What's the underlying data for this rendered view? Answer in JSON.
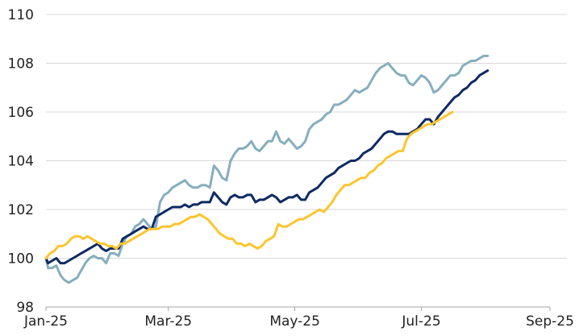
{
  "chart_data": {
    "type": "line",
    "title": "",
    "xlabel": "",
    "ylabel": "",
    "ylim": [
      98,
      110
    ],
    "yticks": [
      98,
      100,
      102,
      104,
      106,
      108,
      110
    ],
    "xticks": [
      "Jan-25",
      "Mar-25",
      "May-25",
      "Jul-25",
      "Sep-25"
    ],
    "xtick_days": [
      0,
      59,
      120,
      181,
      243
    ],
    "grid": "horizontal",
    "legend": "none",
    "x_unit": "days since Jan-25",
    "series": [
      {
        "name": "light-blue series",
        "color": "#86AEBE",
        "points": [
          [
            0,
            100.0
          ],
          [
            1,
            99.6
          ],
          [
            3,
            99.6
          ],
          [
            5,
            99.7
          ],
          [
            7,
            99.3
          ],
          [
            9,
            99.1
          ],
          [
            11,
            99.0
          ],
          [
            13,
            99.1
          ],
          [
            15,
            99.2
          ],
          [
            17,
            99.5
          ],
          [
            19,
            99.8
          ],
          [
            21,
            100.0
          ],
          [
            23,
            100.1
          ],
          [
            25,
            100.0
          ],
          [
            27,
            100.0
          ],
          [
            29,
            99.8
          ],
          [
            31,
            100.2
          ],
          [
            33,
            100.2
          ],
          [
            35,
            100.1
          ],
          [
            37,
            100.6
          ],
          [
            39,
            100.9
          ],
          [
            41,
            101.0
          ],
          [
            43,
            101.3
          ],
          [
            45,
            101.4
          ],
          [
            47,
            101.6
          ],
          [
            49,
            101.4
          ],
          [
            51,
            101.2
          ],
          [
            53,
            101.3
          ],
          [
            55,
            102.3
          ],
          [
            57,
            102.6
          ],
          [
            59,
            102.7
          ],
          [
            61,
            102.9
          ],
          [
            63,
            103.0
          ],
          [
            65,
            103.1
          ],
          [
            67,
            103.2
          ],
          [
            69,
            103.0
          ],
          [
            71,
            102.9
          ],
          [
            73,
            102.9
          ],
          [
            75,
            103.0
          ],
          [
            77,
            103.0
          ],
          [
            79,
            102.9
          ],
          [
            81,
            103.8
          ],
          [
            83,
            103.6
          ],
          [
            85,
            103.3
          ],
          [
            87,
            103.2
          ],
          [
            89,
            104.0
          ],
          [
            91,
            104.3
          ],
          [
            93,
            104.5
          ],
          [
            95,
            104.5
          ],
          [
            97,
            104.6
          ],
          [
            99,
            104.8
          ],
          [
            101,
            104.5
          ],
          [
            103,
            104.4
          ],
          [
            105,
            104.6
          ],
          [
            107,
            104.8
          ],
          [
            109,
            104.8
          ],
          [
            111,
            105.2
          ],
          [
            113,
            104.8
          ],
          [
            115,
            104.7
          ],
          [
            117,
            104.9
          ],
          [
            119,
            104.7
          ],
          [
            121,
            104.5
          ],
          [
            123,
            104.6
          ],
          [
            125,
            104.8
          ],
          [
            127,
            105.3
          ],
          [
            129,
            105.5
          ],
          [
            131,
            105.6
          ],
          [
            133,
            105.7
          ],
          [
            135,
            105.9
          ],
          [
            137,
            106.0
          ],
          [
            139,
            106.3
          ],
          [
            141,
            106.3
          ],
          [
            143,
            106.4
          ],
          [
            145,
            106.5
          ],
          [
            147,
            106.7
          ],
          [
            149,
            106.9
          ],
          [
            151,
            106.8
          ],
          [
            153,
            106.9
          ],
          [
            155,
            107.0
          ],
          [
            157,
            107.3
          ],
          [
            159,
            107.6
          ],
          [
            161,
            107.8
          ],
          [
            163,
            107.9
          ],
          [
            165,
            108.0
          ],
          [
            167,
            107.8
          ],
          [
            169,
            107.6
          ],
          [
            171,
            107.5
          ],
          [
            173,
            107.5
          ],
          [
            175,
            107.2
          ],
          [
            177,
            107.1
          ],
          [
            179,
            107.3
          ],
          [
            181,
            107.5
          ],
          [
            183,
            107.4
          ],
          [
            185,
            107.2
          ],
          [
            187,
            106.8
          ],
          [
            189,
            106.9
          ],
          [
            191,
            107.1
          ],
          [
            193,
            107.3
          ],
          [
            195,
            107.5
          ],
          [
            197,
            107.5
          ],
          [
            199,
            107.6
          ],
          [
            201,
            107.9
          ],
          [
            203,
            108.0
          ],
          [
            205,
            108.1
          ],
          [
            207,
            108.1
          ],
          [
            209,
            108.2
          ],
          [
            211,
            108.3
          ],
          [
            213,
            108.3
          ]
        ]
      },
      {
        "name": "dark-navy series",
        "color": "#0E2A63",
        "points": [
          [
            0,
            100.0
          ],
          [
            1,
            99.8
          ],
          [
            3,
            99.9
          ],
          [
            5,
            100.0
          ],
          [
            7,
            99.8
          ],
          [
            9,
            99.8
          ],
          [
            11,
            99.9
          ],
          [
            13,
            100.0
          ],
          [
            15,
            100.1
          ],
          [
            17,
            100.2
          ],
          [
            19,
            100.3
          ],
          [
            21,
            100.4
          ],
          [
            23,
            100.5
          ],
          [
            25,
            100.6
          ],
          [
            27,
            100.4
          ],
          [
            29,
            100.3
          ],
          [
            31,
            100.4
          ],
          [
            33,
            100.4
          ],
          [
            35,
            100.4
          ],
          [
            37,
            100.8
          ],
          [
            39,
            100.9
          ],
          [
            41,
            101.0
          ],
          [
            43,
            101.1
          ],
          [
            45,
            101.2
          ],
          [
            47,
            101.3
          ],
          [
            49,
            101.2
          ],
          [
            51,
            101.2
          ],
          [
            53,
            101.7
          ],
          [
            55,
            101.8
          ],
          [
            57,
            101.9
          ],
          [
            59,
            102.0
          ],
          [
            61,
            102.1
          ],
          [
            63,
            102.1
          ],
          [
            65,
            102.1
          ],
          [
            67,
            102.2
          ],
          [
            69,
            102.1
          ],
          [
            71,
            102.2
          ],
          [
            73,
            102.2
          ],
          [
            75,
            102.3
          ],
          [
            77,
            102.3
          ],
          [
            79,
            102.3
          ],
          [
            81,
            102.7
          ],
          [
            83,
            102.5
          ],
          [
            85,
            102.3
          ],
          [
            87,
            102.2
          ],
          [
            89,
            102.5
          ],
          [
            91,
            102.6
          ],
          [
            93,
            102.5
          ],
          [
            95,
            102.5
          ],
          [
            97,
            102.6
          ],
          [
            99,
            102.6
          ],
          [
            101,
            102.3
          ],
          [
            103,
            102.4
          ],
          [
            105,
            102.4
          ],
          [
            107,
            102.5
          ],
          [
            109,
            102.6
          ],
          [
            111,
            102.5
          ],
          [
            113,
            102.3
          ],
          [
            115,
            102.4
          ],
          [
            117,
            102.5
          ],
          [
            119,
            102.5
          ],
          [
            121,
            102.6
          ],
          [
            123,
            102.4
          ],
          [
            125,
            102.4
          ],
          [
            127,
            102.7
          ],
          [
            129,
            102.8
          ],
          [
            131,
            102.9
          ],
          [
            133,
            103.1
          ],
          [
            135,
            103.3
          ],
          [
            137,
            103.4
          ],
          [
            139,
            103.5
          ],
          [
            141,
            103.7
          ],
          [
            143,
            103.8
          ],
          [
            145,
            103.9
          ],
          [
            147,
            104.0
          ],
          [
            149,
            104.0
          ],
          [
            151,
            104.1
          ],
          [
            153,
            104.3
          ],
          [
            155,
            104.4
          ],
          [
            157,
            104.5
          ],
          [
            159,
            104.7
          ],
          [
            161,
            104.9
          ],
          [
            163,
            105.1
          ],
          [
            165,
            105.2
          ],
          [
            167,
            105.2
          ],
          [
            169,
            105.1
          ],
          [
            171,
            105.1
          ],
          [
            173,
            105.1
          ],
          [
            175,
            105.1
          ],
          [
            177,
            105.2
          ],
          [
            179,
            105.3
          ],
          [
            181,
            105.5
          ],
          [
            183,
            105.7
          ],
          [
            185,
            105.7
          ],
          [
            187,
            105.5
          ],
          [
            189,
            105.8
          ],
          [
            191,
            106.0
          ],
          [
            193,
            106.2
          ],
          [
            195,
            106.4
          ],
          [
            197,
            106.6
          ],
          [
            199,
            106.7
          ],
          [
            201,
            106.9
          ],
          [
            203,
            107.0
          ],
          [
            205,
            107.2
          ],
          [
            207,
            107.3
          ],
          [
            209,
            107.5
          ],
          [
            211,
            107.6
          ],
          [
            213,
            107.7
          ]
        ]
      },
      {
        "name": "gold series",
        "color": "#FDC52E",
        "points": [
          [
            0,
            100.0
          ],
          [
            2,
            100.2
          ],
          [
            4,
            100.3
          ],
          [
            6,
            100.5
          ],
          [
            8,
            100.5
          ],
          [
            10,
            100.6
          ],
          [
            12,
            100.8
          ],
          [
            14,
            100.9
          ],
          [
            16,
            100.9
          ],
          [
            18,
            100.8
          ],
          [
            20,
            100.9
          ],
          [
            22,
            100.8
          ],
          [
            24,
            100.7
          ],
          [
            26,
            100.6
          ],
          [
            28,
            100.6
          ],
          [
            30,
            100.5
          ],
          [
            32,
            100.5
          ],
          [
            34,
            100.4
          ],
          [
            36,
            100.6
          ],
          [
            38,
            100.6
          ],
          [
            40,
            100.7
          ],
          [
            42,
            100.8
          ],
          [
            44,
            100.9
          ],
          [
            46,
            101.0
          ],
          [
            48,
            101.1
          ],
          [
            50,
            101.2
          ],
          [
            52,
            101.2
          ],
          [
            54,
            101.2
          ],
          [
            56,
            101.3
          ],
          [
            58,
            101.3
          ],
          [
            60,
            101.3
          ],
          [
            62,
            101.4
          ],
          [
            64,
            101.4
          ],
          [
            66,
            101.5
          ],
          [
            68,
            101.6
          ],
          [
            70,
            101.7
          ],
          [
            72,
            101.7
          ],
          [
            74,
            101.8
          ],
          [
            76,
            101.7
          ],
          [
            78,
            101.6
          ],
          [
            80,
            101.4
          ],
          [
            82,
            101.2
          ],
          [
            84,
            101.0
          ],
          [
            86,
            100.9
          ],
          [
            88,
            100.8
          ],
          [
            90,
            100.8
          ],
          [
            92,
            100.6
          ],
          [
            94,
            100.6
          ],
          [
            96,
            100.5
          ],
          [
            98,
            100.6
          ],
          [
            100,
            100.5
          ],
          [
            102,
            100.4
          ],
          [
            104,
            100.5
          ],
          [
            106,
            100.7
          ],
          [
            108,
            100.8
          ],
          [
            110,
            100.9
          ],
          [
            112,
            101.4
          ],
          [
            114,
            101.3
          ],
          [
            116,
            101.3
          ],
          [
            118,
            101.4
          ],
          [
            120,
            101.5
          ],
          [
            122,
            101.6
          ],
          [
            124,
            101.6
          ],
          [
            126,
            101.7
          ],
          [
            128,
            101.8
          ],
          [
            130,
            101.9
          ],
          [
            132,
            102.0
          ],
          [
            134,
            101.9
          ],
          [
            136,
            102.1
          ],
          [
            138,
            102.3
          ],
          [
            140,
            102.6
          ],
          [
            142,
            102.8
          ],
          [
            144,
            103.0
          ],
          [
            146,
            103.0
          ],
          [
            148,
            103.1
          ],
          [
            150,
            103.2
          ],
          [
            152,
            103.3
          ],
          [
            154,
            103.3
          ],
          [
            156,
            103.5
          ],
          [
            158,
            103.6
          ],
          [
            160,
            103.8
          ],
          [
            162,
            103.9
          ],
          [
            164,
            104.1
          ],
          [
            166,
            104.2
          ],
          [
            168,
            104.3
          ],
          [
            170,
            104.4
          ],
          [
            172,
            104.4
          ],
          [
            174,
            104.9
          ],
          [
            176,
            105.1
          ],
          [
            178,
            105.2
          ],
          [
            180,
            105.3
          ],
          [
            182,
            105.4
          ],
          [
            184,
            105.5
          ],
          [
            186,
            105.5
          ],
          [
            188,
            105.6
          ],
          [
            190,
            105.7
          ],
          [
            192,
            105.8
          ],
          [
            194,
            105.9
          ],
          [
            196,
            106.0
          ]
        ]
      }
    ]
  }
}
